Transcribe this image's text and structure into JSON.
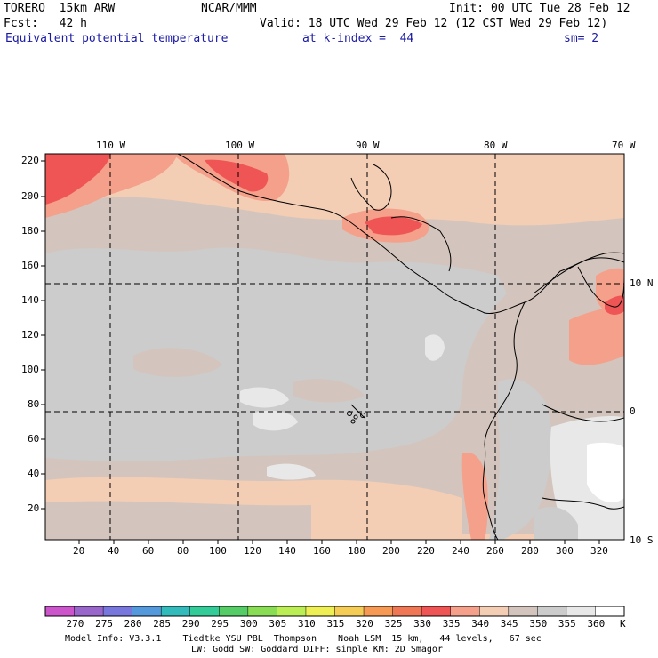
{
  "header": {
    "line1_left": "TORERO  15km ARW",
    "line1_mid": "NCAR/MMM",
    "line1_right": "Init: 00 UTC Tue 28 Feb 12",
    "line2_left": "Fcst:   42 h",
    "line2_right": "Valid: 18 UTC Wed 29 Feb 12 (12 CST Wed 29 Feb 12)",
    "line3_left": "Equivalent potential temperature",
    "line3_mid": "at k-index =  44",
    "line3_right": "sm= 2"
  },
  "map": {
    "top_longitudes": [
      "110 W",
      "100 W",
      "90 W",
      "80 W",
      "70 W"
    ],
    "right_latitudes": [
      "10 N",
      "0",
      "10 S"
    ],
    "y_ticks": [
      "220",
      "200",
      "180",
      "160",
      "140",
      "120",
      "100",
      "80",
      "60",
      "40",
      "20"
    ],
    "x_ticks": [
      "20",
      "40",
      "60",
      "80",
      "100",
      "120",
      "140",
      "160",
      "180",
      "200",
      "220",
      "240",
      "260",
      "280",
      "300",
      "320"
    ]
  },
  "colorbar": {
    "labels": [
      "270",
      "275",
      "280",
      "285",
      "290",
      "295",
      "300",
      "305",
      "310",
      "315",
      "320",
      "325",
      "330",
      "335",
      "340",
      "345",
      "350",
      "355",
      "360"
    ],
    "unit": "K",
    "colors": [
      "#cc55cc",
      "#9966cc",
      "#7777dd",
      "#5599dd",
      "#33bbbb",
      "#33cc99",
      "#55cc66",
      "#88dd55",
      "#bbee55",
      "#eeee55",
      "#f5cc55",
      "#f59955",
      "#f07755",
      "#f05555",
      "#f5a08a",
      "#f3cdb4",
      "#d3c5bd",
      "#cccccc",
      "#e8e8e8",
      "#ffffff"
    ]
  },
  "footer": {
    "line1": "Model Info: V3.3.1    Tiedtke YSU PBL  Thompson    Noah LSM  15 km,   44 levels,   67 sec",
    "line2": "LW: Godd SW: Goddard DIFF: simple KM: 2D Smagor"
  },
  "field_colors": {
    "peach": "#f3cdb4",
    "tan": "#d3c5bd",
    "gray": "#cccccc",
    "lightgray": "#e8e8e8",
    "salmon": "#f5a08a",
    "red": "#f05555"
  }
}
